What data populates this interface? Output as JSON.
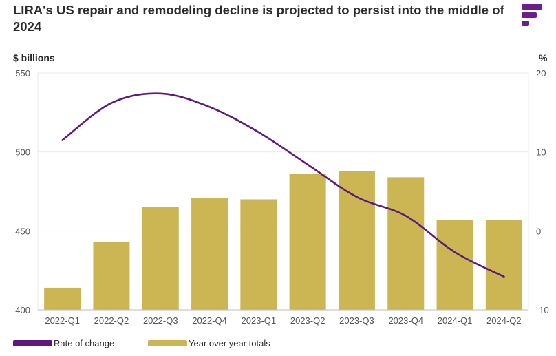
{
  "title": "LIRA's US repair and remodeling decline is projected to persist into the middle of 2024",
  "colors": {
    "bar": "#cbb653",
    "line": "#5c1a7e",
    "grid": "#ebebeb",
    "logo": "#6b1f8c"
  },
  "legend": {
    "line_label": "Rate of change",
    "bar_label": "Year over year totals"
  },
  "chart_data": {
    "type": "bar+line",
    "categories": [
      "2022-Q1",
      "2022-Q2",
      "2022-Q3",
      "2022-Q4",
      "2023-Q1",
      "2023-Q2",
      "2023-Q3",
      "2023-Q4",
      "2024-Q1",
      "2024-Q2"
    ],
    "ylabel_left": "$ billions",
    "ylabel_right": "%",
    "ylim_left": [
      400,
      550
    ],
    "yticks_left": [
      "400",
      "450",
      "500",
      "550"
    ],
    "ylim_right": [
      -10,
      20
    ],
    "yticks_right": [
      "-10",
      "0",
      "10",
      "20"
    ],
    "series": [
      {
        "name": "Year over year totals",
        "type": "bar",
        "axis": "left",
        "values": [
          414,
          443,
          465,
          471,
          470,
          486,
          488,
          484,
          457,
          457
        ]
      },
      {
        "name": "Rate of change",
        "type": "line",
        "axis": "right",
        "values": [
          11.5,
          16.2,
          17.4,
          15.7,
          12.5,
          8.4,
          4.3,
          1.9,
          -2.7,
          -5.8
        ]
      }
    ]
  }
}
